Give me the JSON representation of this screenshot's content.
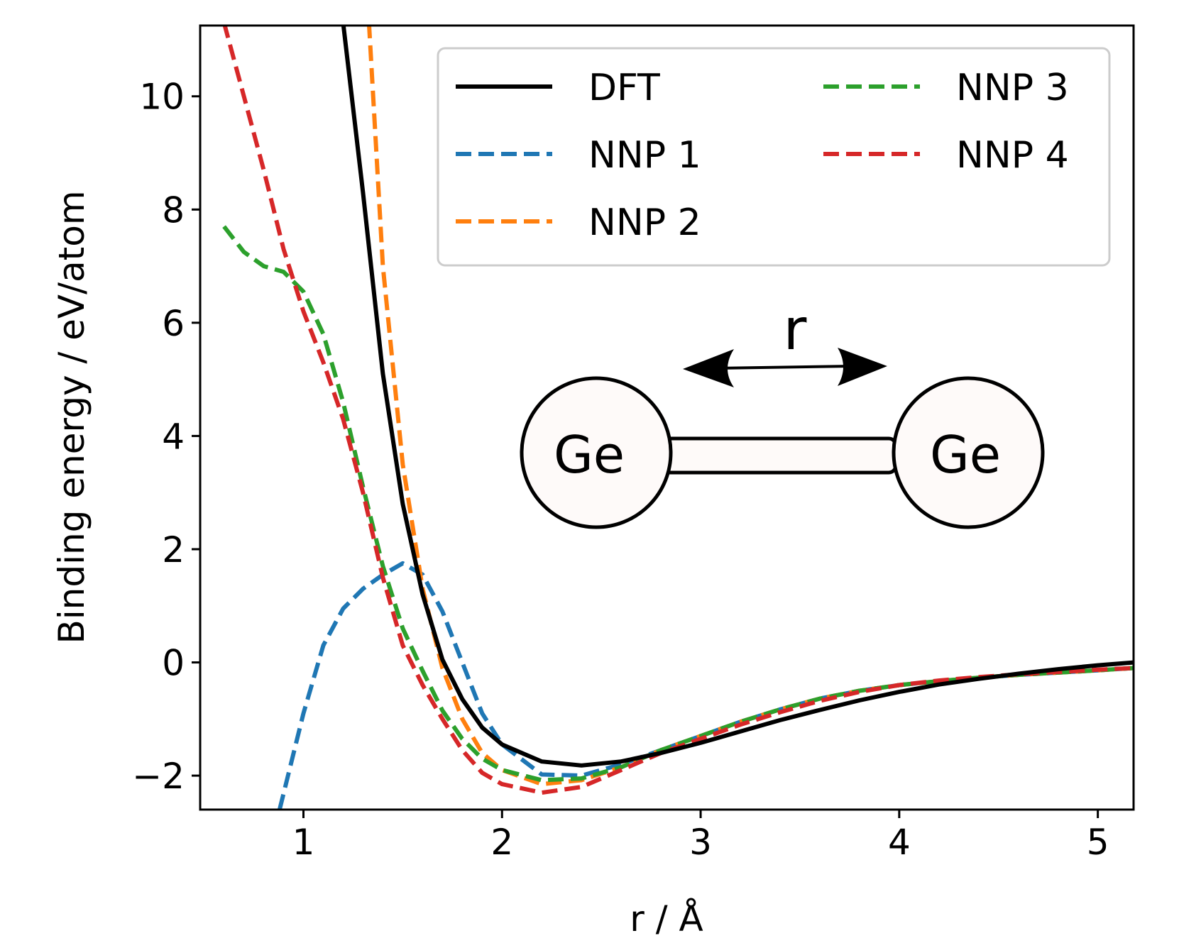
{
  "chart_data": {
    "type": "line",
    "xlabel": "r / Å",
    "ylabel": "Binding energy / eV/atom",
    "xlim": [
      0.48,
      5.18
    ],
    "ylim": [
      -2.6,
      11.25
    ],
    "xticks": [
      1,
      2,
      3,
      4,
      5
    ],
    "xtick_labels": [
      "1",
      "2",
      "3",
      "4",
      "5"
    ],
    "yticks": [
      -2,
      0,
      2,
      4,
      6,
      8,
      10
    ],
    "ytick_labels": [
      "−2",
      "0",
      "2",
      "4",
      "6",
      "8",
      "10"
    ],
    "grid": false,
    "legend_position": "top-right",
    "series": [
      {
        "name": "DFT",
        "color": "#000000",
        "style": "solid",
        "x": [
          1.2,
          1.3,
          1.4,
          1.5,
          1.6,
          1.7,
          1.8,
          1.9,
          2.0,
          2.2,
          2.4,
          2.6,
          2.8,
          3.0,
          3.2,
          3.4,
          3.6,
          3.8,
          4.0,
          4.2,
          4.4,
          4.6,
          4.8,
          5.0,
          5.18
        ],
        "y": [
          11.3,
          8.3,
          5.1,
          2.8,
          1.2,
          0.05,
          -0.65,
          -1.15,
          -1.45,
          -1.75,
          -1.82,
          -1.75,
          -1.6,
          -1.42,
          -1.22,
          -1.02,
          -0.84,
          -0.67,
          -0.52,
          -0.39,
          -0.29,
          -0.2,
          -0.12,
          -0.05,
          0.0
        ]
      },
      {
        "name": "NNP 1",
        "color": "#1f77b4",
        "style": "dashed",
        "x": [
          0.88,
          1.0,
          1.1,
          1.2,
          1.3,
          1.4,
          1.5,
          1.6,
          1.7,
          1.8,
          1.9,
          2.0,
          2.2,
          2.4,
          2.6,
          2.8,
          3.0,
          3.2,
          3.4,
          3.6,
          3.8,
          4.0,
          4.2,
          4.4,
          4.6,
          4.8,
          5.0,
          5.18
        ],
        "y": [
          -2.6,
          -0.9,
          0.3,
          0.95,
          1.3,
          1.55,
          1.75,
          1.55,
          0.9,
          0.0,
          -0.9,
          -1.45,
          -1.98,
          -2.0,
          -1.8,
          -1.55,
          -1.3,
          -1.05,
          -0.83,
          -0.64,
          -0.5,
          -0.4,
          -0.33,
          -0.27,
          -0.22,
          -0.18,
          -0.14,
          -0.1
        ]
      },
      {
        "name": "NNP 2",
        "color": "#ff7f0e",
        "style": "dashed",
        "x": [
          1.33,
          1.4,
          1.5,
          1.6,
          1.7,
          1.8,
          1.9,
          2.0,
          2.2,
          2.4,
          2.6,
          2.8,
          3.0,
          3.2,
          3.4,
          3.6,
          3.8,
          4.0,
          4.2,
          4.4,
          4.6,
          4.8,
          5.0,
          5.18
        ],
        "y": [
          11.3,
          7.0,
          3.5,
          1.3,
          -0.1,
          -1.0,
          -1.6,
          -1.9,
          -2.15,
          -2.08,
          -1.85,
          -1.55,
          -1.3,
          -1.05,
          -0.83,
          -0.64,
          -0.5,
          -0.4,
          -0.33,
          -0.27,
          -0.22,
          -0.18,
          -0.14,
          -0.1
        ]
      },
      {
        "name": "NNP 3",
        "color": "#2ca02c",
        "style": "dashed",
        "x": [
          0.6,
          0.7,
          0.8,
          0.9,
          1.0,
          1.1,
          1.2,
          1.3,
          1.4,
          1.5,
          1.6,
          1.7,
          1.8,
          1.9,
          2.0,
          2.2,
          2.4,
          2.6,
          2.8,
          3.0,
          3.2,
          3.4,
          3.6,
          3.8,
          4.0,
          4.2,
          4.4,
          4.6,
          4.8,
          5.0,
          5.18
        ],
        "y": [
          7.7,
          7.25,
          7.0,
          6.9,
          6.55,
          5.8,
          4.6,
          3.1,
          1.7,
          0.6,
          -0.15,
          -0.85,
          -1.35,
          -1.7,
          -1.9,
          -2.08,
          -2.05,
          -1.85,
          -1.55,
          -1.3,
          -1.05,
          -0.83,
          -0.64,
          -0.5,
          -0.4,
          -0.33,
          -0.27,
          -0.22,
          -0.18,
          -0.14,
          -0.1
        ]
      },
      {
        "name": "NNP 4",
        "color": "#d62728",
        "style": "dashed",
        "x": [
          0.6,
          0.7,
          0.8,
          0.9,
          1.0,
          1.1,
          1.2,
          1.3,
          1.4,
          1.5,
          1.6,
          1.7,
          1.8,
          1.9,
          2.0,
          2.2,
          2.4,
          2.6,
          2.8,
          3.0,
          3.2,
          3.4,
          3.6,
          3.8,
          4.0,
          4.2,
          4.4,
          4.6,
          4.8,
          5.0,
          5.18
        ],
        "y": [
          11.3,
          10.0,
          8.7,
          7.3,
          6.2,
          5.3,
          4.3,
          3.0,
          1.5,
          0.3,
          -0.4,
          -1.0,
          -1.55,
          -1.95,
          -2.15,
          -2.3,
          -2.2,
          -1.9,
          -1.6,
          -1.35,
          -1.1,
          -0.88,
          -0.68,
          -0.52,
          -0.4,
          -0.32,
          -0.26,
          -0.21,
          -0.17,
          -0.13,
          -0.1
        ]
      }
    ],
    "annotations": {
      "atom_left": "Ge",
      "atom_right": "Ge",
      "distance_label": "r"
    }
  }
}
